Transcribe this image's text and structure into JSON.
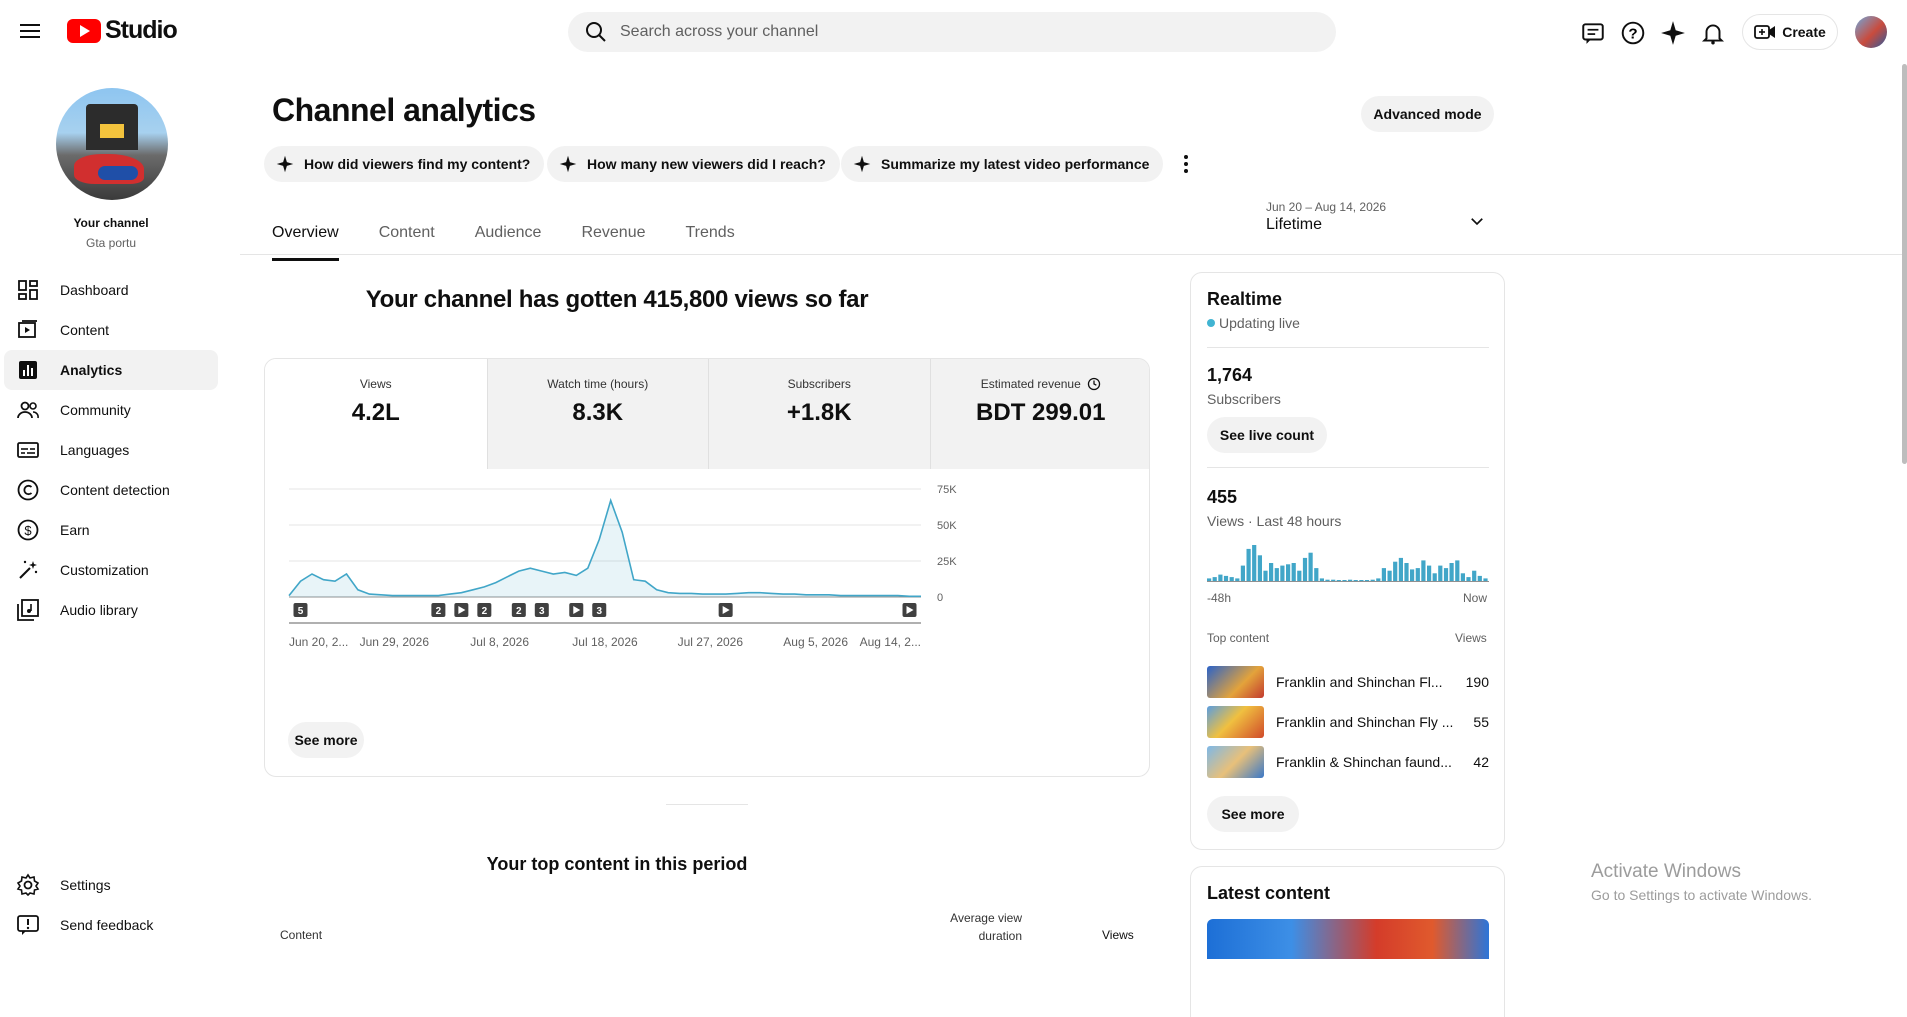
{
  "header": {
    "logo_text": "Studio",
    "search_placeholder": "Search across your channel",
    "create_label": "Create"
  },
  "sidebar": {
    "channel_title": "Your channel",
    "channel_name": "Gta portu",
    "items": [
      {
        "label": "Dashboard",
        "icon": "dashboard-icon"
      },
      {
        "label": "Content",
        "icon": "content-icon"
      },
      {
        "label": "Analytics",
        "icon": "analytics-icon"
      },
      {
        "label": "Community",
        "icon": "community-icon"
      },
      {
        "label": "Languages",
        "icon": "languages-icon"
      },
      {
        "label": "Content detection",
        "icon": "copyright-icon"
      },
      {
        "label": "Earn",
        "icon": "earn-icon"
      },
      {
        "label": "Customization",
        "icon": "customization-icon"
      },
      {
        "label": "Audio library",
        "icon": "audio-library-icon"
      }
    ],
    "bottom_items": [
      {
        "label": "Settings",
        "icon": "settings-icon"
      },
      {
        "label": "Send feedback",
        "icon": "feedback-icon"
      }
    ]
  },
  "page": {
    "title": "Channel analytics",
    "advanced_mode_label": "Advanced mode",
    "chips": [
      "How did viewers find my content?",
      "How many new viewers did I reach?",
      "Summarize my latest video performance"
    ],
    "tabs": [
      "Overview",
      "Content",
      "Audience",
      "Revenue",
      "Trends"
    ],
    "active_tab": "Overview",
    "date_range": {
      "dates": "Jun 20 – Aug 14, 2026",
      "label": "Lifetime"
    },
    "headline": "Your channel has gotten 415,800 views so far",
    "metrics": [
      {
        "label": "Views",
        "value": "4.2L"
      },
      {
        "label": "Watch time (hours)",
        "value": "8.3K"
      },
      {
        "label": "Subscribers",
        "value": "+1.8K"
      },
      {
        "label": "Estimated revenue",
        "value": "BDT 299.01"
      }
    ],
    "see_more_label": "See more",
    "top_content_title": "Your top content in this period",
    "top_content_columns": {
      "content": "Content",
      "avg_view_duration_line1": "Average view",
      "avg_view_duration_line2": "duration",
      "views": "Views"
    }
  },
  "chart_data": {
    "type": "line",
    "x_tick_labels": [
      "Jun 20, 2...",
      "Jun 29, 2026",
      "Jul 8, 2026",
      "Jul 18, 2026",
      "Jul 27, 2026",
      "Aug 5, 2026",
      "Aug 14, 2..."
    ],
    "y_tick_labels": [
      "75K",
      "50K",
      "25K",
      "0"
    ],
    "ylim": [
      0,
      75000
    ],
    "series": [
      {
        "values": [
          1000,
          11000,
          16000,
          12000,
          11000,
          16000,
          5000,
          2000,
          1500,
          1000,
          1000,
          1000,
          1000,
          1000,
          2000,
          3000,
          5000,
          7000,
          10000,
          14000,
          18000,
          20000,
          18000,
          16000,
          17000,
          15000,
          20000,
          40000,
          67000,
          45000,
          12000,
          11000,
          5000,
          3000,
          2500,
          2500,
          2000,
          2000,
          2000,
          2500,
          3000,
          3000,
          2500,
          2000,
          2000,
          1500,
          1500,
          1500,
          1000,
          1000,
          1000,
          1000,
          1000,
          1000,
          500,
          500
        ]
      }
    ],
    "event_markers": [
      {
        "index": 1,
        "label": "5"
      },
      {
        "index": 13,
        "label": "2"
      },
      {
        "index": 15,
        "label": "play"
      },
      {
        "index": 17,
        "label": "2"
      },
      {
        "index": 20,
        "label": "2"
      },
      {
        "index": 22,
        "label": "3"
      },
      {
        "index": 25,
        "label": "play"
      },
      {
        "index": 27,
        "label": "3"
      },
      {
        "index": 38,
        "label": "play"
      },
      {
        "index": 54,
        "label": "play"
      }
    ],
    "color": "#41a6c8",
    "grid": true
  },
  "realtime": {
    "title": "Realtime",
    "status": "Updating live",
    "subscribers_value": "1,764",
    "subscribers_label": "Subscribers",
    "see_live_count_label": "See live count",
    "views_value": "455",
    "views_label": "Views · Last 48 hours",
    "bars": [
      2,
      3,
      5,
      4,
      3,
      2,
      12,
      25,
      28,
      20,
      8,
      14,
      10,
      12,
      13,
      14,
      8,
      18,
      22,
      10,
      2,
      1,
      1,
      0,
      0,
      1,
      0,
      0,
      0,
      1,
      2,
      10,
      8,
      15,
      18,
      14,
      9,
      10,
      16,
      12,
      6,
      12,
      10,
      14,
      16,
      6,
      3,
      8,
      4,
      2
    ],
    "axis_start": "-48h",
    "axis_end": "Now",
    "top_content_label": "Top content",
    "views_col_label": "Views",
    "top_items": [
      {
        "title": "Franklin and Shinchan Fl...",
        "views": "190"
      },
      {
        "title": "Franklin and Shinchan Fly ...",
        "views": "55"
      },
      {
        "title": "Franklin & Shinchan faund...",
        "views": "42"
      }
    ],
    "see_more_label": "See more"
  },
  "latest_content": {
    "title": "Latest content"
  },
  "watermark": {
    "line1": "Activate Windows",
    "line2": "Go to Settings to activate Windows."
  }
}
